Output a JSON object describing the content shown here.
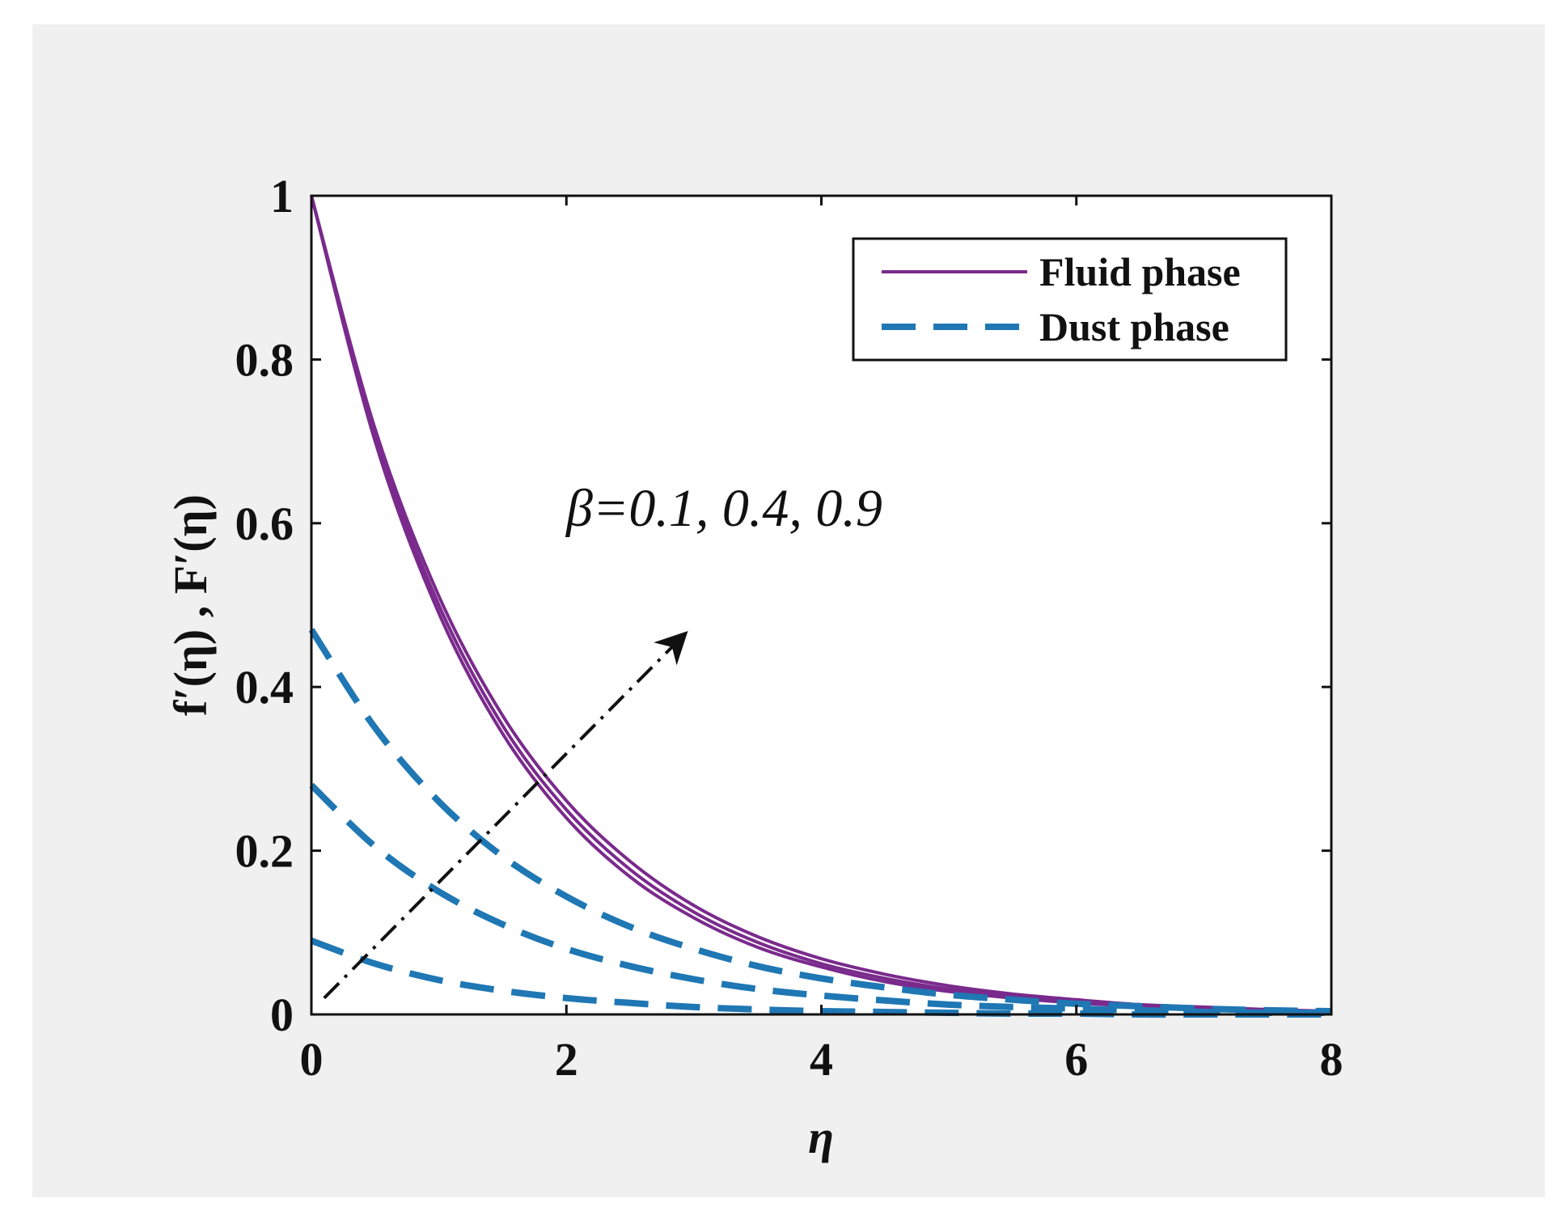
{
  "colors": {
    "outer_background": "#f0f0f0",
    "plot_background": "#ffffff",
    "fluid": "#7a2a8c",
    "dust": "#1f77b4",
    "arrow": "#111111"
  },
  "chart_data": {
    "type": "line",
    "title": "",
    "xlabel": "η",
    "ylabel": "f′(η) , F′(η)",
    "xlim": [
      0,
      8
    ],
    "ylim": [
      0,
      1
    ],
    "xticks": [
      0,
      2,
      4,
      6,
      8
    ],
    "yticks": [
      0,
      0.2,
      0.4,
      0.6,
      0.8,
      1
    ],
    "xtick_labels": [
      "0",
      "2",
      "4",
      "6",
      "8"
    ],
    "ytick_labels": [
      "0",
      "0.2",
      "0.4",
      "0.6",
      "0.8",
      "1"
    ],
    "grid": false,
    "legend": {
      "placement": "top-right",
      "entries": [
        {
          "label": "Fluid phase",
          "style": "solid",
          "color": "#7a2a8c"
        },
        {
          "label": "Dust phase",
          "style": "dashed",
          "color": "#1f77b4"
        }
      ]
    },
    "annotation": {
      "text": "β=0.1, 0.4, 0.9",
      "arrow_from": [
        0.1,
        0.02
      ],
      "arrow_to": [
        2.9,
        0.46
      ]
    },
    "x": [
      0,
      0.5,
      1,
      1.5,
      2,
      2.5,
      3,
      3.5,
      4,
      4.5,
      5,
      5.5,
      6,
      6.5,
      7,
      7.5,
      8
    ],
    "series": [
      {
        "style": "solid",
        "group": "fluid",
        "values": [
          1,
          0.7,
          0.49,
          0.343,
          0.24,
          0.168,
          0.118,
          0.082,
          0.058,
          0.04,
          0.028,
          0.02,
          0.014,
          0.01,
          0.007,
          0.004,
          0.002
        ]
      },
      {
        "style": "solid",
        "group": "fluid",
        "values": [
          1,
          0.707,
          0.5,
          0.353,
          0.25,
          0.177,
          0.125,
          0.088,
          0.062,
          0.044,
          0.031,
          0.022,
          0.016,
          0.011,
          0.008,
          0.005,
          0.003
        ]
      },
      {
        "style": "solid",
        "group": "fluid",
        "values": [
          1,
          0.715,
          0.511,
          0.365,
          0.261,
          0.187,
          0.133,
          0.095,
          0.068,
          0.049,
          0.035,
          0.025,
          0.018,
          0.012,
          0.009,
          0.006,
          0.004
        ]
      },
      {
        "style": "dashed",
        "group": "dust",
        "values": [
          0.09,
          0.062,
          0.042,
          0.029,
          0.02,
          0.014,
          0.009,
          0.006,
          0.004,
          0.003,
          0.002,
          0.001,
          0.001,
          0,
          0,
          0,
          0
        ]
      },
      {
        "style": "dashed",
        "group": "dust",
        "values": [
          0.28,
          0.205,
          0.15,
          0.11,
          0.08,
          0.059,
          0.043,
          0.031,
          0.023,
          0.017,
          0.012,
          0.009,
          0.007,
          0.005,
          0.003,
          0.002,
          0.002
        ]
      },
      {
        "style": "dashed",
        "group": "dust",
        "values": [
          0.47,
          0.35,
          0.26,
          0.193,
          0.144,
          0.107,
          0.08,
          0.059,
          0.044,
          0.033,
          0.024,
          0.018,
          0.013,
          0.01,
          0.007,
          0.005,
          0.004
        ]
      }
    ]
  }
}
